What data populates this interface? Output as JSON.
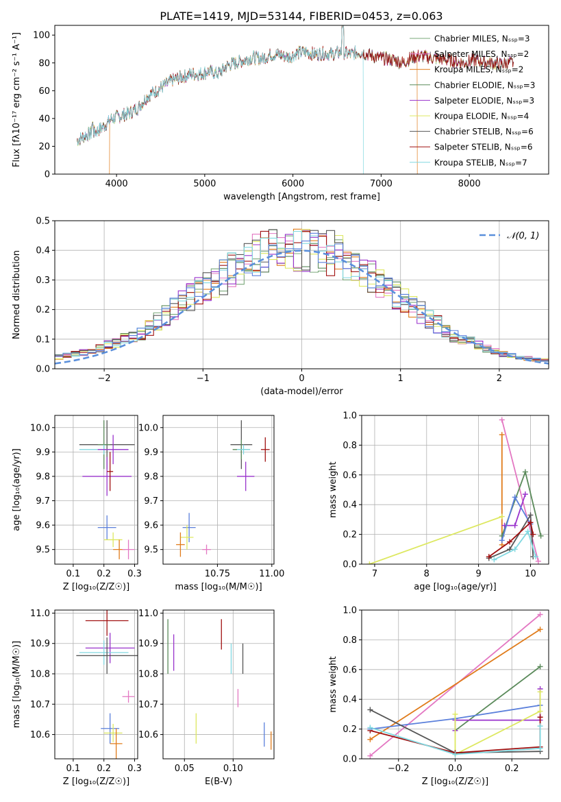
{
  "figure_title": "PLATE=1419, MJD=53144, FIBERID=0453, z=0.063",
  "series_colors": [
    "#7aa87a",
    "#e377c2",
    "#e07b1a",
    "#5a8a5a",
    "#9932cc",
    "#dde860",
    "#555555",
    "#a01010",
    "#80d8e0"
  ],
  "chart_data": [
    {
      "id": "spectrum",
      "type": "line",
      "title": "PLATE=1419, MJD=53144, FIBERID=0453, z=0.063",
      "xlabel": "wavelength [Angstrom, rest frame]",
      "ylabel": "Flux [fλ10⁻¹⁷ erg cm⁻² s⁻¹ A⁻¹]",
      "xlim": [
        3300,
        8900
      ],
      "ylim": [
        0,
        107
      ],
      "xticks": [
        4000,
        5000,
        6000,
        7000,
        8000
      ],
      "yticks": [
        0,
        20,
        40,
        60,
        80,
        100
      ],
      "legend_position": "top-right",
      "legend": [
        "Chabrier MILES, Nₛₛₚ=3",
        "Salpeter MILES, Nₛₛₚ=2",
        "Kroupa MILES, Nₛₛₚ=2",
        "Chabrier ELODIE, Nₛₛₚ=3",
        "Salpeter ELODIE, Nₛₛₚ=3",
        "Kroupa ELODIE, Nₛₛₚ=4",
        "Chabrier STELIB, Nₛₛₚ=6",
        "Salpeter STELIB, Nₛₛₚ=6",
        "Kroupa STELIB, Nₛₛₚ=7"
      ],
      "continuum": [
        [
          3550,
          24
        ],
        [
          3650,
          28
        ],
        [
          3750,
          30
        ],
        [
          3850,
          34
        ],
        [
          3950,
          40
        ],
        [
          4050,
          42
        ],
        [
          4150,
          44
        ],
        [
          4250,
          48
        ],
        [
          4350,
          56
        ],
        [
          4450,
          60
        ],
        [
          4550,
          64
        ],
        [
          4650,
          68
        ],
        [
          4750,
          70
        ],
        [
          4850,
          72
        ],
        [
          4950,
          72
        ],
        [
          5050,
          74
        ],
        [
          5150,
          72
        ],
        [
          5250,
          78
        ],
        [
          5350,
          80
        ],
        [
          5450,
          82
        ],
        [
          5550,
          84
        ],
        [
          5650,
          83
        ],
        [
          5750,
          86
        ],
        [
          5850,
          86
        ],
        [
          5950,
          84
        ],
        [
          6050,
          87
        ],
        [
          6150,
          88
        ],
        [
          6250,
          86
        ],
        [
          6350,
          87
        ],
        [
          6450,
          86
        ],
        [
          6550,
          88
        ],
        [
          6650,
          86
        ],
        [
          6750,
          88
        ],
        [
          6850,
          86
        ],
        [
          6950,
          84
        ],
        [
          7050,
          83
        ],
        [
          7150,
          82
        ],
        [
          7250,
          80
        ],
        [
          7350,
          84
        ],
        [
          7450,
          85
        ],
        [
          7550,
          84
        ],
        [
          7650,
          83
        ],
        [
          7750,
          82
        ],
        [
          7850,
          81
        ],
        [
          7950,
          80
        ],
        [
          8050,
          82
        ],
        [
          8150,
          81
        ],
        [
          8250,
          80
        ],
        [
          8350,
          79
        ],
        [
          8450,
          80
        ]
      ],
      "model_spans": [
        [
          3550,
          8500
        ],
        [
          3550,
          8500
        ],
        [
          3920,
          7410
        ],
        [
          3550,
          8500
        ],
        [
          3550,
          8500
        ],
        [
          3550,
          8500
        ],
        [
          3550,
          8500
        ],
        [
          3550,
          8500
        ],
        [
          3550,
          6800
        ]
      ],
      "cutoffs": [
        3920,
        6800,
        7410
      ]
    },
    {
      "id": "residual-histogram",
      "type": "histogram",
      "xlabel": "(data-model)/error",
      "ylabel": "Normed distribution",
      "xlim": [
        -2.5,
        2.5
      ],
      "ylim": [
        0,
        0.5
      ],
      "xticks": [
        -2,
        -1,
        0,
        1,
        2
      ],
      "yticks": [
        0.0,
        0.1,
        0.2,
        0.3,
        0.4,
        0.5
      ],
      "reference_curve": "N(0,1)",
      "legend_position": "top-right",
      "envelope": [
        0.04,
        0.045,
        0.05,
        0.055,
        0.06,
        0.07,
        0.08,
        0.09,
        0.1,
        0.11,
        0.12,
        0.14,
        0.16,
        0.18,
        0.2,
        0.22,
        0.24,
        0.26,
        0.28,
        0.3,
        0.31,
        0.33,
        0.35,
        0.36,
        0.38,
        0.39,
        0.4,
        0.4,
        0.41,
        0.41,
        0.41,
        0.4,
        0.4,
        0.39,
        0.38,
        0.36,
        0.35,
        0.33,
        0.31,
        0.29,
        0.27,
        0.25,
        0.23,
        0.21,
        0.19,
        0.17,
        0.15,
        0.13,
        0.11,
        0.1,
        0.09,
        0.08,
        0.07,
        0.06,
        0.05,
        0.045,
        0.04,
        0.035,
        0.03,
        0.03
      ]
    },
    {
      "id": "z-vs-age",
      "type": "errorbar",
      "xlabel": "Z [log₁₀(Z/Z☉)]",
      "ylabel": "age  [log₁₀(age/yr)]",
      "xlim": [
        0.04,
        0.31
      ],
      "ylim": [
        9.44,
        10.05
      ],
      "xticks": [
        0.1,
        0.2,
        0.3
      ],
      "yticks": [
        9.5,
        9.6,
        9.7,
        9.8,
        9.9,
        10.0
      ],
      "points": [
        {
          "x": 0.21,
          "y": 9.93,
          "xerr": 0.09,
          "yerr": 0.1,
          "color": "#555555"
        },
        {
          "x": 0.2,
          "y": 9.93,
          "xerr": 0.02,
          "yerr": 0.1,
          "color": "#5a8a5a"
        },
        {
          "x": 0.2,
          "y": 9.91,
          "xerr": 0.08,
          "yerr": 0.02,
          "color": "#80d8e0"
        },
        {
          "x": 0.23,
          "y": 9.91,
          "xerr": 0.05,
          "yerr": 0.06,
          "color": "#9932cc"
        },
        {
          "x": 0.21,
          "y": 9.8,
          "xerr": 0.08,
          "yerr": 0.08,
          "color": "#9932cc"
        },
        {
          "x": 0.22,
          "y": 9.82,
          "xerr": 0.01,
          "yerr": 0.08,
          "color": "#a01010"
        },
        {
          "x": 0.21,
          "y": 9.59,
          "xerr": 0.03,
          "yerr": 0.05,
          "color": "#5a7fdb"
        },
        {
          "x": 0.23,
          "y": 9.54,
          "xerr": 0.03,
          "yerr": 0.03,
          "color": "#dde860"
        },
        {
          "x": 0.25,
          "y": 9.5,
          "xerr": 0.02,
          "yerr": 0.04,
          "color": "#e07b1a"
        },
        {
          "x": 0.28,
          "y": 9.5,
          "xerr": 0.02,
          "yerr": 0.04,
          "color": "#e377c2"
        }
      ]
    },
    {
      "id": "mass-vs-age",
      "type": "errorbar",
      "xlabel": "mass [log₁₀(M/M☉)]",
      "ylabel": "",
      "xlim": [
        10.5,
        11.01
      ],
      "ylim": [
        9.44,
        10.05
      ],
      "xticks": [
        10.75,
        11.0
      ],
      "yticks": [
        9.5,
        9.6,
        9.7,
        9.8,
        9.9,
        10.0
      ],
      "points": [
        {
          "x": 10.86,
          "y": 9.93,
          "xerr": 0.05,
          "yerr": 0.1,
          "color": "#555555"
        },
        {
          "x": 10.86,
          "y": 9.91,
          "xerr": 0.04,
          "yerr": 0.04,
          "color": "#5a8a5a"
        },
        {
          "x": 10.87,
          "y": 9.91,
          "xerr": 0.03,
          "yerr": 0.02,
          "color": "#80d8e0"
        },
        {
          "x": 10.97,
          "y": 9.91,
          "xerr": 0.02,
          "yerr": 0.05,
          "color": "#a01010"
        },
        {
          "x": 10.88,
          "y": 9.8,
          "xerr": 0.04,
          "yerr": 0.06,
          "color": "#9932cc"
        },
        {
          "x": 10.62,
          "y": 9.59,
          "xerr": 0.03,
          "yerr": 0.06,
          "color": "#5a7fdb"
        },
        {
          "x": 10.61,
          "y": 9.55,
          "xerr": 0.03,
          "yerr": 0.05,
          "color": "#dde860"
        },
        {
          "x": 10.58,
          "y": 9.52,
          "xerr": 0.02,
          "yerr": 0.05,
          "color": "#e07b1a"
        },
        {
          "x": 10.7,
          "y": 9.5,
          "xerr": 0.02,
          "yerr": 0.02,
          "color": "#e377c2"
        }
      ]
    },
    {
      "id": "age-vs-weight",
      "type": "line",
      "xlabel": "age  [log₁₀(age/yr)]",
      "ylabel": "mass weight",
      "xlim": [
        6.75,
        10.35
      ],
      "ylim": [
        0,
        1.0
      ],
      "xticks": [
        7,
        8,
        9,
        10
      ],
      "yticks": [
        0.0,
        0.2,
        0.4,
        0.6,
        0.8,
        1.0
      ],
      "series": [
        {
          "color": "#e377c2",
          "points": [
            [
              9.45,
              0.97
            ],
            [
              10.15,
              0.02
            ]
          ]
        },
        {
          "color": "#e07b1a",
          "points": [
            [
              9.45,
              0.87
            ],
            [
              9.45,
              0.13
            ]
          ]
        },
        {
          "color": "#5a8a5a",
          "points": [
            [
              9.45,
              0.19
            ],
            [
              9.9,
              0.62
            ],
            [
              10.2,
              0.19
            ]
          ]
        },
        {
          "color": "#9932cc",
          "points": [
            [
              9.5,
              0.26
            ],
            [
              9.7,
              0.26
            ],
            [
              9.9,
              0.47
            ]
          ]
        },
        {
          "color": "#5a7fdb",
          "points": [
            [
              9.45,
              0.16
            ],
            [
              9.7,
              0.45
            ],
            [
              10.0,
              0.27
            ]
          ]
        },
        {
          "color": "#dde860",
          "points": [
            [
              6.9,
              0.0
            ],
            [
              9.45,
              0.32
            ]
          ]
        },
        {
          "color": "#555555",
          "points": [
            [
              9.2,
              0.04
            ],
            [
              9.6,
              0.1
            ],
            [
              10.0,
              0.33
            ],
            [
              10.05,
              0.05
            ]
          ]
        },
        {
          "color": "#a01010",
          "points": [
            [
              9.2,
              0.05
            ],
            [
              9.6,
              0.15
            ],
            [
              10.0,
              0.28
            ],
            [
              10.05,
              0.2
            ]
          ]
        },
        {
          "color": "#80d8e0",
          "points": [
            [
              9.3,
              0.03
            ],
            [
              9.7,
              0.1
            ],
            [
              9.95,
              0.22
            ],
            [
              10.1,
              0.05
            ]
          ]
        }
      ]
    },
    {
      "id": "z-vs-mass",
      "type": "errorbar",
      "xlabel": "Z [log₁₀(Z/Z☉)]",
      "ylabel": "mass [log₁₀(M/M☉)]",
      "xlim": [
        0.04,
        0.31
      ],
      "ylim": [
        10.52,
        11.01
      ],
      "xticks": [
        0.1,
        0.2,
        0.3
      ],
      "yticks": [
        10.6,
        10.7,
        10.8,
        10.9,
        11.0
      ],
      "points": [
        {
          "x": 0.21,
          "y": 10.975,
          "xerr": 0.07,
          "yerr": 0.05,
          "color": "#a01010"
        },
        {
          "x": 0.22,
          "y": 10.885,
          "xerr": 0.08,
          "yerr": 0.05,
          "color": "#9932cc"
        },
        {
          "x": 0.2,
          "y": 10.87,
          "xerr": 0.08,
          "yerr": 0.04,
          "color": "#80d8e0"
        },
        {
          "x": 0.21,
          "y": 10.86,
          "xerr": 0.1,
          "yerr": 0.06,
          "color": "#555555"
        },
        {
          "x": 0.28,
          "y": 10.725,
          "xerr": 0.02,
          "yerr": 0.02,
          "color": "#e377c2"
        },
        {
          "x": 0.22,
          "y": 10.62,
          "xerr": 0.03,
          "yerr": 0.05,
          "color": "#5a7fdb"
        },
        {
          "x": 0.23,
          "y": 10.605,
          "xerr": 0.03,
          "yerr": 0.03,
          "color": "#dde860"
        },
        {
          "x": 0.24,
          "y": 10.57,
          "xerr": 0.02,
          "yerr": 0.05,
          "color": "#e07b1a"
        }
      ]
    },
    {
      "id": "ebv-vs-mass",
      "type": "errorbar",
      "xlabel": "E(B-V)",
      "ylabel": "",
      "xlim": [
        0.028,
        0.142
      ],
      "ylim": [
        10.52,
        11.01
      ],
      "xticks": [
        0.05,
        0.1
      ],
      "yticks": [
        10.6,
        10.7,
        10.8,
        10.9,
        11.0
      ],
      "points": [
        {
          "x": 0.033,
          "y": 10.89,
          "xerr": 0,
          "yerr": 0.09,
          "color": "#5a8a5a"
        },
        {
          "x": 0.039,
          "y": 10.87,
          "xerr": 0,
          "yerr": 0.06,
          "color": "#9932cc"
        },
        {
          "x": 0.062,
          "y": 10.62,
          "xerr": 0,
          "yerr": 0.05,
          "color": "#dde860"
        },
        {
          "x": 0.088,
          "y": 10.93,
          "xerr": 0,
          "yerr": 0.05,
          "color": "#a01010"
        },
        {
          "x": 0.098,
          "y": 10.85,
          "xerr": 0,
          "yerr": 0.05,
          "color": "#80d8e0"
        },
        {
          "x": 0.105,
          "y": 10.72,
          "xerr": 0,
          "yerr": 0.03,
          "color": "#e377c2"
        },
        {
          "x": 0.11,
          "y": 10.85,
          "xerr": 0,
          "yerr": 0.05,
          "color": "#555555"
        },
        {
          "x": 0.132,
          "y": 10.6,
          "xerr": 0,
          "yerr": 0.04,
          "color": "#5a7fdb"
        },
        {
          "x": 0.139,
          "y": 10.58,
          "xerr": 0,
          "yerr": 0.03,
          "color": "#e07b1a"
        }
      ]
    },
    {
      "id": "z-vs-weight",
      "type": "line",
      "xlabel": "Z [log₁₀(Z/Z☉)]",
      "ylabel": "mass weight",
      "xlim": [
        -0.33,
        0.33
      ],
      "ylim": [
        0,
        1.0
      ],
      "xticks": [
        -0.2,
        0.0,
        0.2
      ],
      "yticks": [
        0.0,
        0.2,
        0.4,
        0.6,
        0.8,
        1.0
      ],
      "series": [
        {
          "color": "#e377c2",
          "points": [
            [
              -0.3,
              0.02
            ],
            [
              0.3,
              0.97
            ]
          ]
        },
        {
          "color": "#e07b1a",
          "points": [
            [
              -0.3,
              0.13
            ],
            [
              0.3,
              0.87
            ]
          ]
        },
        {
          "color": "#5a8a5a",
          "points": [
            [
              0.0,
              0.19
            ],
            [
              0.3,
              0.62
            ]
          ]
        },
        {
          "color": "#9932cc",
          "points": [
            [
              0.0,
              0.19
            ],
            [
              0.0,
              0.26
            ],
            [
              0.3,
              0.26
            ],
            [
              0.3,
              0.47
            ]
          ]
        },
        {
          "color": "#5a7fdb",
          "points": [
            [
              -0.3,
              0.2
            ],
            [
              0.0,
              0.27
            ],
            [
              0.3,
              0.36
            ]
          ]
        },
        {
          "color": "#dde860",
          "points": [
            [
              0.0,
              0.3
            ],
            [
              0.0,
              0.03
            ],
            [
              0.3,
              0.32
            ],
            [
              0.3,
              0.45
            ]
          ]
        },
        {
          "color": "#555555",
          "points": [
            [
              -0.3,
              0.33
            ],
            [
              0.0,
              0.04
            ],
            [
              0.3,
              0.05
            ]
          ]
        },
        {
          "color": "#a01010",
          "points": [
            [
              -0.3,
              0.19
            ],
            [
              0.0,
              0.04
            ],
            [
              0.3,
              0.08
            ],
            [
              0.3,
              0.28
            ]
          ]
        },
        {
          "color": "#80d8e0",
          "points": [
            [
              -0.3,
              0.21
            ],
            [
              0.0,
              0.03
            ],
            [
              0.3,
              0.07
            ],
            [
              0.3,
              0.22
            ]
          ]
        }
      ]
    }
  ]
}
